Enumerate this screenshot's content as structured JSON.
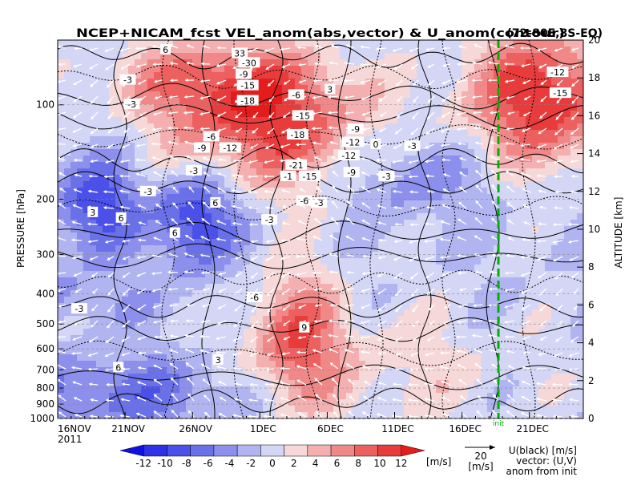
{
  "chart_data": {
    "type": "heatmap",
    "title": "NCEP+NICAM_fcst VEL_anom(abs,vector) & U_anom(contour)",
    "region": "(72-80E,8S-EQ)",
    "ylabel_left": "PRESSURE [hPa]",
    "ylabel_right": "ALTITUDE [km]",
    "x_ticks": [
      "16NOV",
      "21NOV",
      "26NOV",
      "1DEC",
      "6DEC",
      "11DEC",
      "16DEC",
      "21DEC"
    ],
    "x_year": "2011",
    "x_range_days": [
      0,
      39
    ],
    "y_ticks_pressure": [
      "100",
      "200",
      "300",
      "400",
      "500",
      "600",
      "700",
      "800",
      "900",
      "1000"
    ],
    "y_ticks_altitude": [
      "0",
      "2",
      "4",
      "6",
      "8",
      "10",
      "12",
      "14",
      "16",
      "18",
      "20"
    ],
    "init_marker": {
      "label": "init",
      "day": 32.7,
      "color": "#00b000"
    },
    "colorbar": {
      "unit": "[m/s]",
      "labels": [
        "-12",
        "-10",
        "-8",
        "-6",
        "-4",
        "-2",
        "0",
        "2",
        "4",
        "6",
        "8",
        "10",
        "12"
      ],
      "colors": [
        "#1010e0",
        "#3030e8",
        "#4a50e8",
        "#6a70e8",
        "#8c90ec",
        "#b0b4f0",
        "#d4d6f6",
        "#f6d8d8",
        "#f4b0b0",
        "#f08888",
        "#ec6060",
        "#e83c3c",
        "#e41c1c"
      ]
    },
    "vector_ref": {
      "value": "20",
      "unit": "[m/s]"
    },
    "legend_text": [
      "U(black) [m/s]",
      "vector: (U,V)",
      "anom from init"
    ],
    "contour_labels": [
      {
        "text": "6",
        "day": 8,
        "km": 19.5
      },
      {
        "text": "33",
        "day": 13.5,
        "km": 19.3
      },
      {
        "text": "-3",
        "day": 5.2,
        "km": 17.9
      },
      {
        "text": "-30",
        "day": 14.2,
        "km": 18.8
      },
      {
        "text": "-9",
        "day": 13.8,
        "km": 18.2
      },
      {
        "text": "-15",
        "day": 14.1,
        "km": 17.6
      },
      {
        "text": "-18",
        "day": 14.1,
        "km": 16.8
      },
      {
        "text": "-6",
        "day": 17.7,
        "km": 17.1
      },
      {
        "text": "-3",
        "day": 5.5,
        "km": 16.6
      },
      {
        "text": "-15",
        "day": 18.2,
        "km": 16.0
      },
      {
        "text": "-18",
        "day": 17.8,
        "km": 15.0
      },
      {
        "text": "-6",
        "day": 11.4,
        "km": 14.9
      },
      {
        "text": "-9",
        "day": 10.7,
        "km": 14.3
      },
      {
        "text": "-12",
        "day": 12.8,
        "km": 14.3
      },
      {
        "text": "-12",
        "day": 21.9,
        "km": 14.6
      },
      {
        "text": "-12",
        "day": 21.6,
        "km": 13.9
      },
      {
        "text": "-9",
        "day": 22.1,
        "km": 15.3
      },
      {
        "text": "-21",
        "day": 17.7,
        "km": 13.4
      },
      {
        "text": "-1",
        "day": 17.1,
        "km": 12.8
      },
      {
        "text": "-15",
        "day": 18.7,
        "km": 12.8
      },
      {
        "text": "-9",
        "day": 21.8,
        "km": 13.0
      },
      {
        "text": "-3",
        "day": 24.4,
        "km": 12.8
      },
      {
        "text": "-3",
        "day": 10.1,
        "km": 13.1
      },
      {
        "text": "-3",
        "day": 6.7,
        "km": 12.0
      },
      {
        "text": "-6",
        "day": 18.3,
        "km": 11.5
      },
      {
        "text": "-3",
        "day": 19.4,
        "km": 11.4
      },
      {
        "text": "-3",
        "day": 15.7,
        "km": 10.5
      },
      {
        "text": "3",
        "day": 2.6,
        "km": 10.9
      },
      {
        "text": "6",
        "day": 4.7,
        "km": 10.6
      },
      {
        "text": "6",
        "day": 11.7,
        "km": 11.4
      },
      {
        "text": "-6",
        "day": 14.6,
        "km": 6.4
      },
      {
        "text": "9",
        "day": 18.3,
        "km": 4.8
      },
      {
        "text": "-12",
        "day": 37.1,
        "km": 18.3
      },
      {
        "text": "-15",
        "day": 37.3,
        "km": 17.2
      },
      {
        "text": "-3",
        "day": 1.6,
        "km": 5.8
      },
      {
        "text": "6",
        "day": 4.5,
        "km": 2.7
      },
      {
        "text": "3",
        "day": 11.9,
        "km": 3.1
      },
      {
        "text": "3",
        "day": 20.2,
        "km": 17.4
      },
      {
        "text": "6",
        "day": 8.7,
        "km": 9.8
      },
      {
        "text": "0",
        "day": 23.6,
        "km": 14.5
      },
      {
        "text": "-3",
        "day": 26.3,
        "km": 14.4
      }
    ]
  }
}
